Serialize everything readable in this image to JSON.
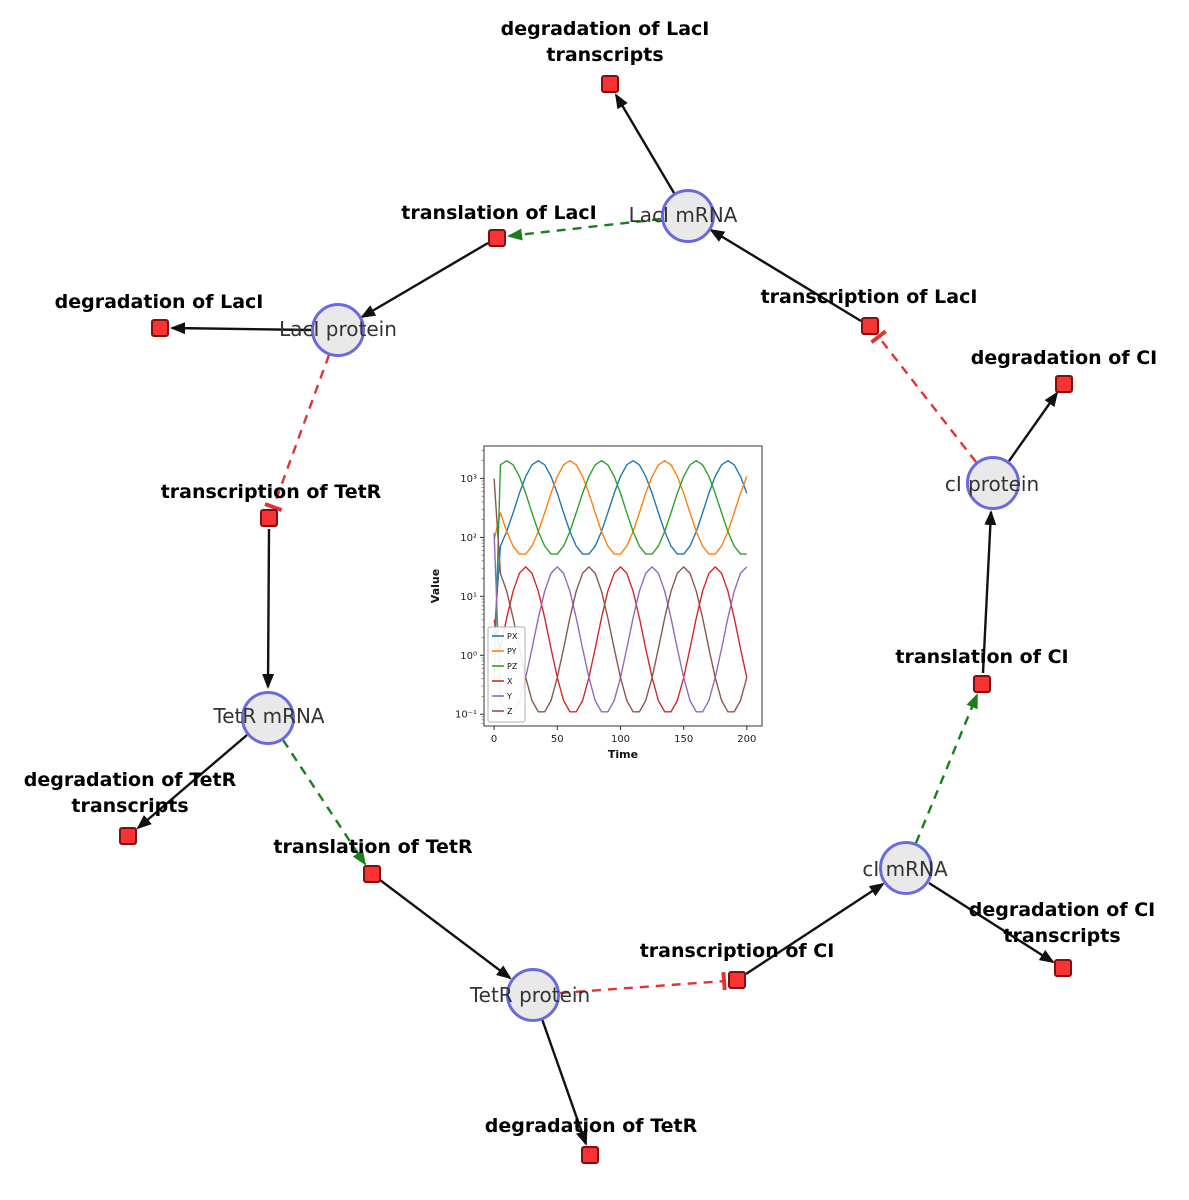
{
  "colors": {
    "species-fill": "#e9e9e9",
    "species-border": "#6a6ae0",
    "reaction-fill": "#f93333",
    "reaction-border": "#801010",
    "edge": "#111111",
    "activation": "#1a7f1a",
    "inhibition": "#e23333"
  },
  "diagram": {
    "species": [
      {
        "id": "laci-mrna",
        "label": "LacI mRNA"
      },
      {
        "id": "laci-protein",
        "label": "LacI protein"
      },
      {
        "id": "tetr-mrna",
        "label": "TetR mRNA"
      },
      {
        "id": "tetr-protein",
        "label": "TetR protein"
      },
      {
        "id": "ci-mrna",
        "label": "cI mRNA"
      },
      {
        "id": "ci-protein",
        "label": "cI protein"
      }
    ],
    "reactions": [
      {
        "id": "degradation-laci-transcripts",
        "lines": [
          "degradation of LacI",
          "transcripts"
        ]
      },
      {
        "id": "translation-laci",
        "lines": [
          "translation of LacI"
        ]
      },
      {
        "id": "transcription-laci",
        "lines": [
          "transcription of LacI"
        ]
      },
      {
        "id": "degradation-laci",
        "lines": [
          "degradation of LacI"
        ]
      },
      {
        "id": "transcription-tetr",
        "lines": [
          "transcription of TetR"
        ]
      },
      {
        "id": "degradation-ci",
        "lines": [
          "degradation of CI"
        ]
      },
      {
        "id": "translation-ci",
        "lines": [
          "translation of CI"
        ]
      },
      {
        "id": "degradation-tetr-transcripts",
        "lines": [
          "degradation of TetR",
          "transcripts"
        ]
      },
      {
        "id": "translation-tetr",
        "lines": [
          "translation of TetR"
        ]
      },
      {
        "id": "transcription-ci",
        "lines": [
          "transcription of CI"
        ]
      },
      {
        "id": "degradation-ci-transcripts",
        "lines": [
          "degradation of CI",
          "transcripts"
        ]
      },
      {
        "id": "degradation-tetr",
        "lines": [
          "degradation of TetR"
        ]
      }
    ],
    "edges": [
      {
        "from": "laci-mrna",
        "to": "degradation-laci-transcripts",
        "type": "consumption"
      },
      {
        "from": "transcription-laci",
        "to": "laci-mrna",
        "type": "production"
      },
      {
        "from": "laci-mrna",
        "to": "translation-laci",
        "type": "modifier"
      },
      {
        "from": "translation-laci",
        "to": "laci-protein",
        "type": "production"
      },
      {
        "from": "laci-protein",
        "to": "degradation-laci",
        "type": "consumption"
      },
      {
        "from": "laci-protein",
        "to": "transcription-tetr",
        "type": "inhibition"
      },
      {
        "from": "transcription-tetr",
        "to": "tetr-mrna",
        "type": "production"
      },
      {
        "from": "tetr-mrna",
        "to": "degradation-tetr-transcripts",
        "type": "consumption"
      },
      {
        "from": "tetr-mrna",
        "to": "translation-tetr",
        "type": "modifier"
      },
      {
        "from": "translation-tetr",
        "to": "tetr-protein",
        "type": "production"
      },
      {
        "from": "tetr-protein",
        "to": "degradation-tetr",
        "type": "consumption"
      },
      {
        "from": "tetr-protein",
        "to": "transcription-ci",
        "type": "inhibition"
      },
      {
        "from": "transcription-ci",
        "to": "ci-mrna",
        "type": "production"
      },
      {
        "from": "ci-mrna",
        "to": "degradation-ci-transcripts",
        "type": "consumption"
      },
      {
        "from": "ci-mrna",
        "to": "translation-ci",
        "type": "modifier"
      },
      {
        "from": "translation-ci",
        "to": "ci-protein",
        "type": "production"
      },
      {
        "from": "ci-protein",
        "to": "degradation-ci",
        "type": "consumption"
      },
      {
        "from": "ci-protein",
        "to": "transcription-laci",
        "type": "inhibition"
      }
    ]
  },
  "chart_data": {
    "type": "line",
    "title": "",
    "xlabel": "Time",
    "ylabel": "Value",
    "y_scale": "log",
    "x_ticks": [
      0,
      50,
      100,
      150,
      200
    ],
    "y_tick_exponents": [
      -1,
      0,
      1,
      2,
      3
    ],
    "xlim": [
      -8,
      212
    ],
    "ylim_log": [
      -1.2,
      3.55
    ],
    "legend_position": "lower-left",
    "x": [
      0,
      5,
      10,
      15,
      20,
      25,
      30,
      35,
      40,
      45,
      50,
      55,
      60,
      65,
      70,
      75,
      80,
      85,
      90,
      95,
      100,
      105,
      110,
      115,
      120,
      125,
      130,
      135,
      140,
      145,
      150,
      155,
      160,
      165,
      170,
      175,
      180,
      185,
      190,
      195,
      200
    ],
    "series": [
      {
        "name": "PX",
        "color": "#1f77b4",
        "values": [
          2,
          71,
          126,
          261,
          559,
          1084,
          1702,
          1995,
          1702,
          1084,
          559,
          261,
          126,
          71,
          52,
          52,
          71,
          126,
          261,
          559,
          1084,
          1702,
          1995,
          1702,
          1084,
          559,
          261,
          126,
          71,
          52,
          52,
          71,
          126,
          261,
          559,
          1084,
          1702,
          1995,
          1702,
          1084,
          559
        ]
      },
      {
        "name": "PY",
        "color": "#ff7f0e",
        "values": [
          90,
          261,
          126,
          71,
          52,
          52,
          71,
          126,
          261,
          559,
          1084,
          1702,
          1995,
          1702,
          1084,
          559,
          261,
          126,
          71,
          52,
          52,
          71,
          126,
          261,
          559,
          1084,
          1702,
          1995,
          1702,
          1084,
          559,
          261,
          126,
          71,
          52,
          52,
          71,
          126,
          261,
          559,
          1084
        ]
      },
      {
        "name": "PZ",
        "color": "#2ca02c",
        "values": [
          0.3,
          1702,
          1995,
          1702,
          1084,
          559,
          261,
          126,
          71,
          52,
          52,
          71,
          126,
          261,
          559,
          1084,
          1702,
          1995,
          1702,
          1084,
          559,
          261,
          126,
          71,
          52,
          52,
          71,
          126,
          261,
          559,
          1084,
          1702,
          1995,
          1702,
          1084,
          559,
          261,
          126,
          71,
          52,
          52
        ]
      },
      {
        "name": "X",
        "color": "#d62728",
        "values": [
          4,
          1.3,
          4.3,
          12.2,
          24.6,
          31.6,
          24.6,
          12.2,
          4.3,
          1.3,
          0.42,
          0.17,
          0.11,
          0.11,
          0.17,
          0.42,
          1.3,
          4.3,
          12.2,
          24.6,
          31.6,
          24.6,
          12.2,
          4.3,
          1.3,
          0.42,
          0.17,
          0.11,
          0.11,
          0.17,
          0.42,
          1.3,
          4.3,
          12.2,
          24.6,
          31.6,
          24.6,
          12.2,
          4.3,
          1.3,
          0.42
        ]
      },
      {
        "name": "Y",
        "color": "#9467bd",
        "values": [
          120,
          0.17,
          0.11,
          0.11,
          0.17,
          0.42,
          1.3,
          4.3,
          12.2,
          24.6,
          31.6,
          24.6,
          12.2,
          4.3,
          1.3,
          0.42,
          0.17,
          0.11,
          0.11,
          0.17,
          0.42,
          1.3,
          4.3,
          12.2,
          24.6,
          31.6,
          24.6,
          12.2,
          4.3,
          1.3,
          0.42,
          0.17,
          0.11,
          0.11,
          0.17,
          0.42,
          1.3,
          4.3,
          12.2,
          24.6,
          31.6
        ]
      },
      {
        "name": "Z",
        "color": "#8c564b",
        "values": [
          1000,
          24.6,
          12.2,
          4.3,
          1.3,
          0.42,
          0.17,
          0.11,
          0.11,
          0.17,
          0.42,
          1.3,
          4.3,
          12.2,
          24.6,
          31.6,
          24.6,
          12.2,
          4.3,
          1.3,
          0.42,
          0.17,
          0.11,
          0.11,
          0.17,
          0.42,
          1.3,
          4.3,
          12.2,
          24.6,
          31.6,
          24.6,
          12.2,
          4.3,
          1.3,
          0.42,
          0.17,
          0.11,
          0.11,
          0.17,
          0.42
        ]
      }
    ]
  }
}
